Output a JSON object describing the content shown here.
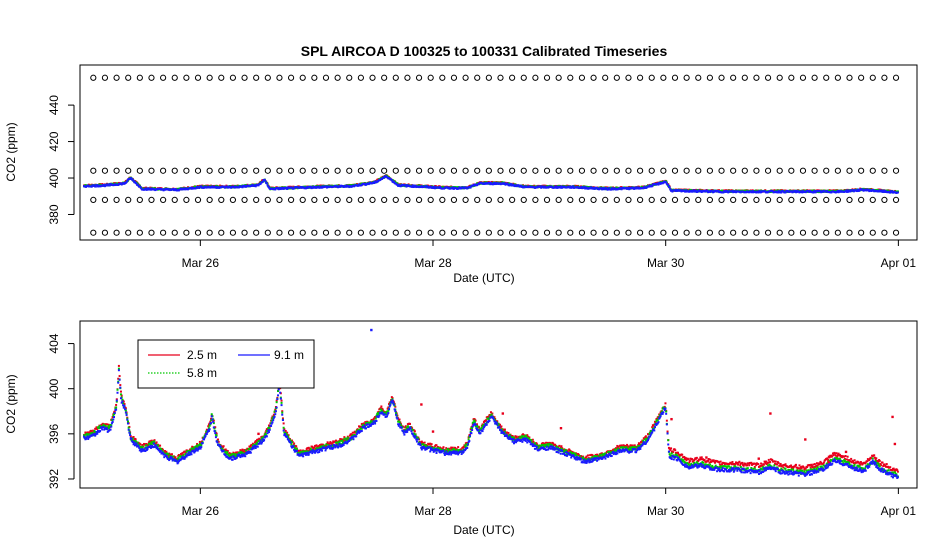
{
  "colors": {
    "series_2_5": "#e8001c",
    "series_5_8": "#00c800",
    "series_9_1": "#1a1aff",
    "cal": "#000000"
  },
  "chart_data": [
    {
      "type": "scatter",
      "title": "SPL   AIRCOA  D   100325  to  100331   Calibrated Timeseries",
      "xlabel": "Date (UTC)",
      "ylabel": "CO2 (ppm)",
      "xlim": [
        0,
        7.1
      ],
      "ylim": [
        366,
        462
      ],
      "yticks": [
        380,
        400,
        420,
        440
      ],
      "ytick_labels": [
        "380",
        "400",
        "420",
        "440"
      ],
      "xticks": [
        1,
        3,
        5,
        7
      ],
      "xtick_labels": [
        "Mar 26",
        "Mar 28",
        "Mar 30",
        "Apr 01"
      ],
      "calibration_levels": [
        370,
        388,
        404,
        455
      ],
      "calibration_spacing_days": 0.1,
      "calibration_start_day": 0.08,
      "series": [
        {
          "name": "2.5 m",
          "color_key": "series_2_5"
        },
        {
          "name": "5.8 m",
          "color_key": "series_5_8"
        },
        {
          "name": "9.1 m",
          "color_key": "series_9_1"
        }
      ],
      "trend_points": [
        [
          0,
          395.5
        ],
        [
          0.2,
          396
        ],
        [
          0.35,
          397
        ],
        [
          0.4,
          400
        ],
        [
          0.5,
          394
        ],
        [
          0.8,
          393.5
        ],
        [
          1.0,
          395
        ],
        [
          1.3,
          395
        ],
        [
          1.5,
          396
        ],
        [
          1.55,
          399
        ],
        [
          1.6,
          394
        ],
        [
          2.0,
          395
        ],
        [
          2.3,
          395.5
        ],
        [
          2.5,
          397.5
        ],
        [
          2.6,
          401
        ],
        [
          2.7,
          396
        ],
        [
          3.1,
          394.5
        ],
        [
          3.3,
          394.5
        ],
        [
          3.4,
          397
        ],
        [
          3.6,
          397
        ],
        [
          3.8,
          395
        ],
        [
          4.2,
          395
        ],
        [
          4.5,
          394
        ],
        [
          4.8,
          394.5
        ],
        [
          4.95,
          397
        ],
        [
          5.0,
          398
        ],
        [
          5.05,
          393
        ],
        [
          5.5,
          392.5
        ],
        [
          6.0,
          392.5
        ],
        [
          6.5,
          392.5
        ],
        [
          6.7,
          393.5
        ],
        [
          6.9,
          392.5
        ],
        [
          7.0,
          392
        ]
      ]
    },
    {
      "type": "scatter",
      "title": "",
      "xlabel": "Date (UTC)",
      "ylabel": "CO2 (ppm)",
      "xlim": [
        0,
        7.1
      ],
      "ylim": [
        391.2,
        406
      ],
      "yticks": [
        392,
        396,
        400,
        404
      ],
      "ytick_labels": [
        "392",
        "396",
        "400",
        "404"
      ],
      "xticks": [
        1,
        3,
        5,
        7
      ],
      "xtick_labels": [
        "Mar 26",
        "Mar 28",
        "Mar 30",
        "Apr 01"
      ],
      "legend": {
        "entries": [
          "2.5 m",
          "5.8 m",
          "9.1 m"
        ],
        "location": "top-left"
      },
      "series": [
        {
          "name": "2.5 m",
          "color_key": "series_2_5"
        },
        {
          "name": "5.8 m",
          "color_key": "series_5_8"
        },
        {
          "name": "9.1 m",
          "color_key": "series_9_1"
        }
      ],
      "trend_points": [
        [
          0.0,
          395.6
        ],
        [
          0.08,
          395.8
        ],
        [
          0.15,
          396.5
        ],
        [
          0.22,
          396.3
        ],
        [
          0.26,
          397.5
        ],
        [
          0.28,
          398.5
        ],
        [
          0.3,
          401.5
        ],
        [
          0.32,
          399
        ],
        [
          0.36,
          398
        ],
        [
          0.4,
          395.5
        ],
        [
          0.5,
          394.5
        ],
        [
          0.6,
          395
        ],
        [
          0.7,
          394
        ],
        [
          0.8,
          393.5
        ],
        [
          0.9,
          394.2
        ],
        [
          1.0,
          394.8
        ],
        [
          1.08,
          396.5
        ],
        [
          1.1,
          397.5
        ],
        [
          1.15,
          395
        ],
        [
          1.25,
          393.8
        ],
        [
          1.4,
          394.2
        ],
        [
          1.55,
          395.5
        ],
        [
          1.6,
          396.5
        ],
        [
          1.65,
          398
        ],
        [
          1.68,
          400.5
        ],
        [
          1.72,
          396
        ],
        [
          1.85,
          394
        ],
        [
          2.0,
          394.5
        ],
        [
          2.2,
          395
        ],
        [
          2.3,
          395.5
        ],
        [
          2.4,
          396.5
        ],
        [
          2.5,
          397
        ],
        [
          2.55,
          398
        ],
        [
          2.6,
          397.5
        ],
        [
          2.65,
          399
        ],
        [
          2.7,
          397
        ],
        [
          2.75,
          396
        ],
        [
          2.8,
          396.5
        ],
        [
          2.9,
          394.8
        ],
        [
          3.1,
          394.3
        ],
        [
          3.25,
          394.3
        ],
        [
          3.3,
          395
        ],
        [
          3.35,
          397
        ],
        [
          3.4,
          396
        ],
        [
          3.5,
          397.5
        ],
        [
          3.6,
          396
        ],
        [
          3.7,
          395.3
        ],
        [
          3.8,
          395.5
        ],
        [
          3.9,
          394.6
        ],
        [
          4.0,
          394.8
        ],
        [
          4.2,
          394
        ],
        [
          4.3,
          393.5
        ],
        [
          4.45,
          393.8
        ],
        [
          4.6,
          394.5
        ],
        [
          4.75,
          394.5
        ],
        [
          4.85,
          395.5
        ],
        [
          4.92,
          396.8
        ],
        [
          4.98,
          398
        ],
        [
          5.0,
          398.3
        ],
        [
          5.03,
          394
        ],
        [
          5.1,
          393.8
        ],
        [
          5.2,
          393
        ],
        [
          5.3,
          393.2
        ],
        [
          5.45,
          392.8
        ],
        [
          5.6,
          392.8
        ],
        [
          5.8,
          392.6
        ],
        [
          5.9,
          393
        ],
        [
          6.0,
          392.6
        ],
        [
          6.2,
          392.4
        ],
        [
          6.35,
          392.8
        ],
        [
          6.45,
          393.6
        ],
        [
          6.55,
          393.3
        ],
        [
          6.6,
          393
        ],
        [
          6.7,
          392.7
        ],
        [
          6.78,
          393.5
        ],
        [
          6.85,
          392.8
        ],
        [
          6.95,
          392.3
        ],
        [
          7.0,
          392.1
        ]
      ],
      "outliers": [
        [
          2.9,
          398.6
        ],
        [
          3.0,
          396.2
        ],
        [
          3.6,
          397.8
        ],
        [
          4.1,
          396.5
        ],
        [
          5.05,
          397.3
        ],
        [
          5.35,
          393.9
        ],
        [
          5.9,
          397.8
        ],
        [
          6.2,
          395.5
        ],
        [
          6.55,
          394.4
        ],
        [
          6.95,
          397.5
        ],
        [
          6.97,
          395.1
        ],
        [
          5.8,
          393.8
        ],
        [
          6.4,
          393.5
        ],
        [
          1.5,
          396
        ],
        [
          2.47,
          405.2
        ]
      ]
    }
  ]
}
